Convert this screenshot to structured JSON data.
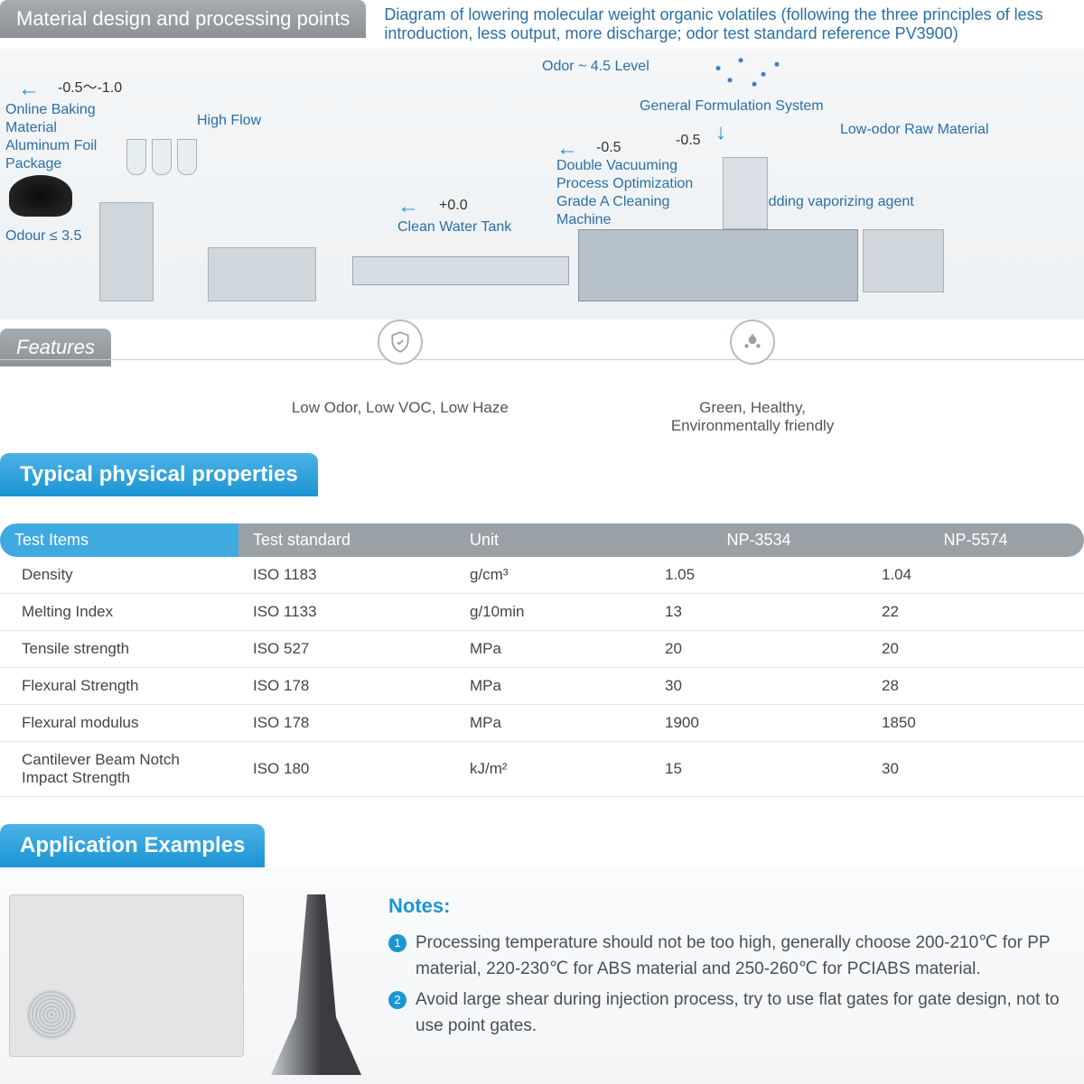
{
  "colors": {
    "accent_blue": "#1c95d4",
    "header_gray": "#8c9196",
    "text_link": "#2a6fa7",
    "row_border": "#e6e8ea"
  },
  "section1": {
    "title": "Material design and processing points",
    "description": "Diagram of lowering molecular weight organic volatiles (following the three principles of less introduction, less output, more discharge; odor test standard reference PV3900)"
  },
  "diagram": {
    "odor_level": "Odor ~ 4.5 Level",
    "gen_formulation": "General Formulation System",
    "low_odor_raw": "Low-odor Raw Material",
    "adding_agent": "Adding vaporizing agent",
    "val_a": "-0.5",
    "double_vac": "Double Vacuuming\nProcess Optimization\nGrade A Cleaning\nMachine",
    "val_b": "-0.5",
    "clean_tank": "Clean Water Tank",
    "val_c": "+0.0",
    "high_flow": "High Flow",
    "val_d": "-0.5～-1.0",
    "baking": "Online Baking\nMaterial\nAluminum Foil\nPackage",
    "odour_le": "Odour ≤ 3.5"
  },
  "features": {
    "title": "Features",
    "items": [
      {
        "icon": "shield",
        "text": "Low Odor, Low VOC, Low Haze"
      },
      {
        "icon": "leaf",
        "text": "Green, Healthy,\nEnvironmentally friendly"
      }
    ]
  },
  "properties": {
    "title": "Typical physical properties",
    "columns": [
      "Test Items",
      "Test standard",
      "Unit",
      "NP-3534",
      "NP-5574"
    ],
    "rows": [
      [
        "Density",
        "ISO 1183",
        "g/cm³",
        "1.05",
        "1.04"
      ],
      [
        "Melting Index",
        "ISO 1133",
        "g/10min",
        "13",
        "22"
      ],
      [
        "Tensile strength",
        "ISO 527",
        "MPa",
        "20",
        "20"
      ],
      [
        "Flexural Strength",
        "ISO 178",
        "MPa",
        "30",
        "28"
      ],
      [
        "Flexural modulus",
        "ISO 178",
        "MPa",
        "1900",
        "1850"
      ],
      [
        "Cantilever Beam Notch\nImpact Strength",
        "ISO 180",
        "kJ/m²",
        "15",
        "30"
      ]
    ]
  },
  "applications": {
    "title": "Application Examples",
    "notes_title": "Notes:",
    "notes": [
      "Processing temperature should not be too high, generally choose 200-210℃ for PP material, 220-230℃ for ABS material and 250-260℃ for PCIABS material.",
      "Avoid large shear during injection process, try to use flat gates for gate design, not to use point gates."
    ]
  }
}
